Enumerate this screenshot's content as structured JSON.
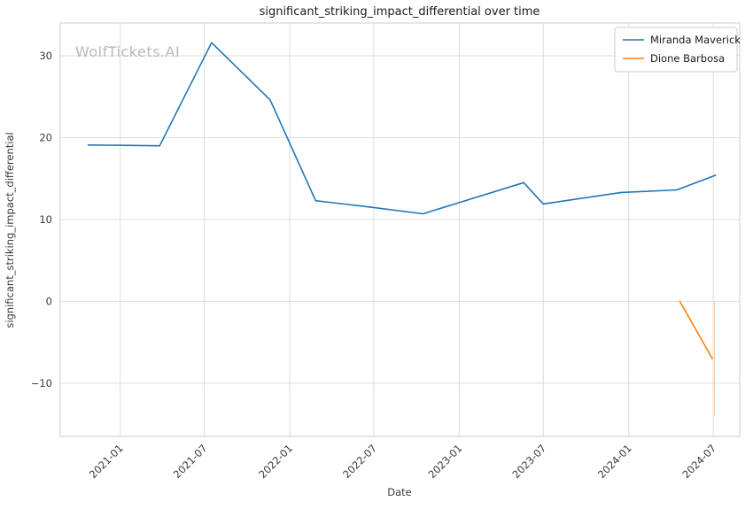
{
  "chart_data": {
    "type": "line",
    "title": "significant_striking_impact_differential over time",
    "xlabel": "Date",
    "ylabel": "significant_striking_impact_differential",
    "watermark": "WolfTickets.AI",
    "x_range": [
      "2020-08-25",
      "2024-08-27"
    ],
    "y_range": [
      -16.5,
      34.0
    ],
    "x_ticks": [
      "2021-01",
      "2021-07",
      "2022-01",
      "2022-07",
      "2023-01",
      "2023-07",
      "2024-01",
      "2024-07"
    ],
    "y_ticks": [
      -10,
      0,
      10,
      20,
      30
    ],
    "grid": true,
    "legend_position": "upper right",
    "series": [
      {
        "name": "Miranda Maverick",
        "color": "#1f77b4",
        "points": [
          [
            "2020-10-24",
            19.1
          ],
          [
            "2021-03-27",
            19.0
          ],
          [
            "2021-07-17",
            31.6
          ],
          [
            "2021-11-20",
            24.6
          ],
          [
            "2022-02-26",
            12.3
          ],
          [
            "2022-06-25",
            11.5
          ],
          [
            "2022-10-15",
            10.7
          ],
          [
            "2023-05-20",
            14.5
          ],
          [
            "2023-07-01",
            11.9
          ],
          [
            "2023-12-16",
            13.3
          ],
          [
            "2024-04-13",
            13.6
          ],
          [
            "2024-07-06",
            15.4
          ]
        ]
      },
      {
        "name": "Dione Barbosa",
        "color": "#ff7f0e",
        "points": [
          [
            "2024-04-20",
            0.0
          ],
          [
            "2024-06-29",
            -7.0
          ]
        ]
      }
    ],
    "faint_marker": {
      "color": "#ff7f0e",
      "x": "2024-07-04",
      "y_from": 0.0,
      "y_to": -14.0,
      "opacity": 0.45
    }
  }
}
